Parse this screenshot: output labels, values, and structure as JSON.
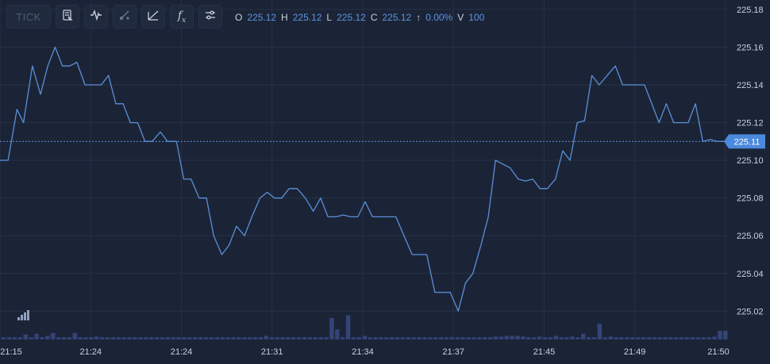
{
  "toolbar": {
    "tick_label": "TICK",
    "icons": [
      "chart-type-icon",
      "indicator-wave-icon",
      "drawing-tool-icon",
      "trendline-icon",
      "formula-fx-icon",
      "settings-sliders-icon"
    ],
    "fx_label": "f",
    "fx_sub": "x"
  },
  "ohlc": {
    "o_label": "O",
    "o_value": "225.12",
    "h_label": "H",
    "h_value": "225.12",
    "l_label": "L",
    "l_value": "225.12",
    "c_label": "C",
    "c_value": "225.12",
    "change_arrow": "↑",
    "change_value": "0.00%",
    "v_label": "V",
    "v_value": "100"
  },
  "colors": {
    "background": "#1b2436",
    "grid": "#273247",
    "line": "#5b8fd9",
    "volume": "#34447a",
    "last_price_badge": "#4a89dc",
    "axis_text": "#c9d1df"
  },
  "chart_data": {
    "type": "line",
    "y_axis": {
      "position": "right",
      "ylim": [
        225.005,
        225.185
      ],
      "ticks": [
        "225.18",
        "225.16",
        "225.14",
        "225.12",
        "225.10",
        "225.08",
        "225.06",
        "225.04",
        "225.02"
      ],
      "tick_values": [
        225.18,
        225.16,
        225.14,
        225.12,
        225.1,
        225.08,
        225.06,
        225.04,
        225.02
      ]
    },
    "x_axis": {
      "ticks": [
        "21:15",
        "21:24",
        "21:24",
        "21:31",
        "21:34",
        "21:37",
        "21:45",
        "21:49",
        "21:50"
      ],
      "tick_positions": [
        0.0,
        0.1245,
        0.2489,
        0.3733,
        0.4978,
        0.6222,
        0.7467,
        0.8711,
        0.9955
      ],
      "xlim": [
        0.0,
        1.0
      ]
    },
    "grid": true,
    "last_price": {
      "value": 225.11,
      "label": "225.11"
    },
    "series": [
      {
        "points": [
          [
            0.0,
            225.1
          ],
          [
            0.0111,
            225.1
          ],
          [
            0.0233,
            225.127
          ],
          [
            0.0322,
            225.12
          ],
          [
            0.0444,
            225.15
          ],
          [
            0.0556,
            225.135
          ],
          [
            0.0656,
            225.15
          ],
          [
            0.0756,
            225.16
          ],
          [
            0.0856,
            225.15
          ],
          [
            0.0956,
            225.15
          ],
          [
            0.1056,
            225.152
          ],
          [
            0.1167,
            225.14
          ],
          [
            0.1289,
            225.14
          ],
          [
            0.1389,
            225.14
          ],
          [
            0.1489,
            225.145
          ],
          [
            0.1589,
            225.13
          ],
          [
            0.1689,
            225.13
          ],
          [
            0.1789,
            225.12
          ],
          [
            0.1889,
            225.12
          ],
          [
            0.1989,
            225.11
          ],
          [
            0.2089,
            225.11
          ],
          [
            0.22,
            225.115
          ],
          [
            0.23,
            225.11
          ],
          [
            0.2422,
            225.11
          ],
          [
            0.2522,
            225.09
          ],
          [
            0.2622,
            225.09
          ],
          [
            0.2733,
            225.08
          ],
          [
            0.2833,
            225.08
          ],
          [
            0.2933,
            225.06
          ],
          [
            0.3044,
            225.05
          ],
          [
            0.3144,
            225.055
          ],
          [
            0.3244,
            225.065
          ],
          [
            0.3356,
            225.06
          ],
          [
            0.3456,
            225.07
          ],
          [
            0.3567,
            225.08
          ],
          [
            0.3667,
            225.083
          ],
          [
            0.3767,
            225.08
          ],
          [
            0.3867,
            225.08
          ],
          [
            0.3967,
            225.085
          ],
          [
            0.4078,
            225.085
          ],
          [
            0.4189,
            225.08
          ],
          [
            0.43,
            225.073
          ],
          [
            0.44,
            225.08
          ],
          [
            0.45,
            225.07
          ],
          [
            0.4611,
            225.07
          ],
          [
            0.4711,
            225.071
          ],
          [
            0.4811,
            225.07
          ],
          [
            0.4911,
            225.07
          ],
          [
            0.5011,
            225.078
          ],
          [
            0.5111,
            225.07
          ],
          [
            0.5222,
            225.07
          ],
          [
            0.5322,
            225.07
          ],
          [
            0.5433,
            225.07
          ],
          [
            0.5544,
            225.06
          ],
          [
            0.5656,
            225.05
          ],
          [
            0.5756,
            225.05
          ],
          [
            0.5856,
            225.05
          ],
          [
            0.5967,
            225.03
          ],
          [
            0.6067,
            225.03
          ],
          [
            0.6178,
            225.03
          ],
          [
            0.6289,
            225.02
          ],
          [
            0.6389,
            225.035
          ],
          [
            0.6489,
            225.04
          ],
          [
            0.66,
            225.055
          ],
          [
            0.67,
            225.07
          ],
          [
            0.68,
            225.1
          ],
          [
            0.69,
            225.098
          ],
          [
            0.7,
            225.096
          ],
          [
            0.7111,
            225.09
          ],
          [
            0.7211,
            225.089
          ],
          [
            0.7311,
            225.09
          ],
          [
            0.7411,
            225.085
          ],
          [
            0.7511,
            225.085
          ],
          [
            0.7622,
            225.09
          ],
          [
            0.7722,
            225.105
          ],
          [
            0.7822,
            225.1
          ],
          [
            0.7922,
            225.12
          ],
          [
            0.8022,
            225.121
          ],
          [
            0.8122,
            225.145
          ],
          [
            0.8222,
            225.14
          ],
          [
            0.8333,
            225.145
          ],
          [
            0.8444,
            225.15
          ],
          [
            0.8544,
            225.14
          ],
          [
            0.8644,
            225.14
          ],
          [
            0.8744,
            225.14
          ],
          [
            0.8844,
            225.14
          ],
          [
            0.8944,
            225.13
          ],
          [
            0.9044,
            225.12
          ],
          [
            0.9144,
            225.13
          ],
          [
            0.9244,
            225.12
          ],
          [
            0.9344,
            225.12
          ],
          [
            0.9444,
            225.12
          ],
          [
            0.9544,
            225.13
          ],
          [
            0.9644,
            225.11
          ],
          [
            0.9744,
            225.111
          ],
          [
            0.9844,
            225.11
          ],
          [
            0.9944,
            225.11
          ]
        ]
      }
    ],
    "volume": {
      "max": 100,
      "values": [
        3,
        3,
        3,
        3,
        7,
        3,
        8,
        3,
        5,
        9,
        3,
        3,
        3,
        9,
        3,
        3,
        3,
        4,
        3,
        3,
        3,
        3,
        3,
        3,
        3,
        3,
        3,
        3,
        3,
        3,
        3,
        3,
        3,
        3,
        3,
        3,
        3,
        3,
        3,
        3,
        3,
        3,
        3,
        3,
        3,
        3,
        3,
        3,
        5,
        3,
        3,
        3,
        3,
        3,
        3,
        3,
        3,
        3,
        3,
        3,
        30,
        14,
        3,
        34,
        3,
        3,
        5,
        3,
        3,
        3,
        3,
        3,
        3,
        3,
        3,
        3,
        3,
        3,
        3,
        3,
        3,
        3,
        3,
        3,
        3,
        3,
        3,
        3,
        3,
        3,
        4,
        4,
        5,
        5,
        5,
        4,
        3,
        3,
        4,
        3,
        3,
        5,
        3,
        3,
        4,
        3,
        8,
        3,
        3,
        22,
        3,
        4,
        3,
        3,
        3,
        3,
        3,
        3,
        3,
        3,
        3,
        3,
        3,
        3,
        3,
        3,
        3,
        3,
        3,
        3,
        4,
        12,
        12
      ]
    }
  }
}
